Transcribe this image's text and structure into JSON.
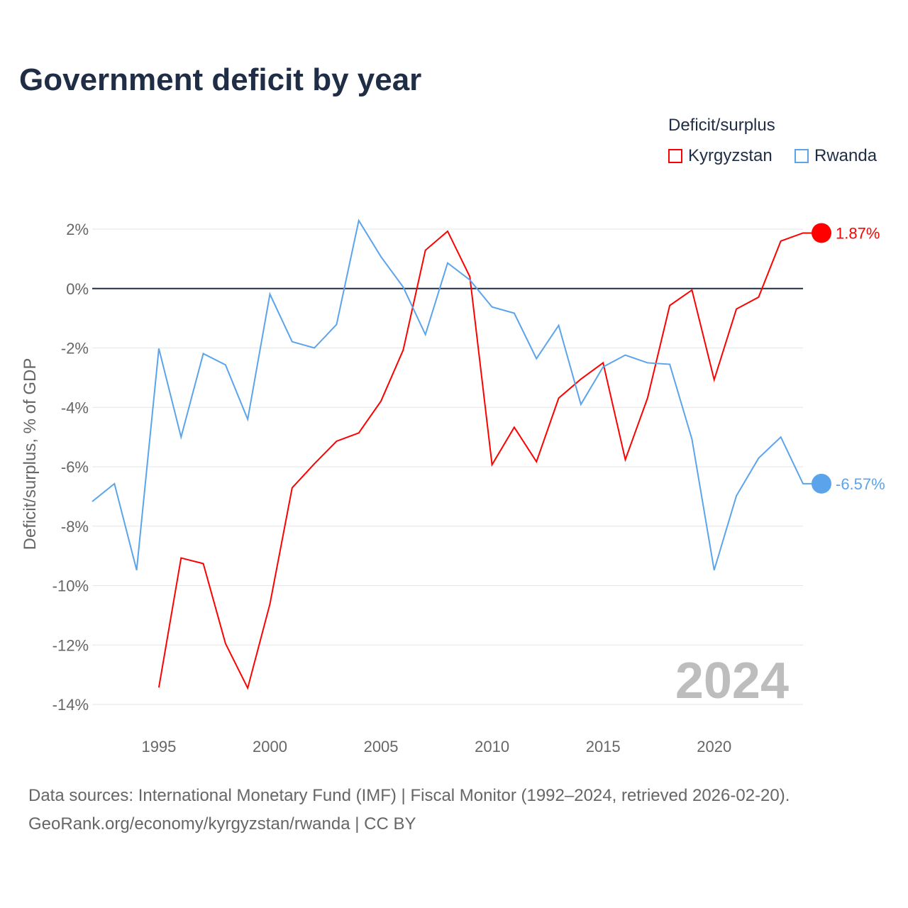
{
  "title": "Government deficit by year",
  "legend": {
    "title": "Deficit/surplus",
    "items": [
      "Kyrgyzstan",
      "Rwanda"
    ]
  },
  "watermark_year": "2024",
  "sources": {
    "line1": "Data sources: International Monetary Fund (IMF) | Fiscal Monitor (1992–2024, retrieved 2026-02-20).",
    "line2": "GeoRank.org/economy/kyrgyzstan/rwanda | CC BY"
  },
  "chart_data": {
    "type": "line",
    "title": "Government deficit by year",
    "xlabel": "",
    "ylabel": "Deficit/surplus, % of GDP",
    "xlim": [
      1992,
      2024
    ],
    "ylim": [
      -14,
      2
    ],
    "xticks": [
      1995,
      2000,
      2005,
      2010,
      2015,
      2020
    ],
    "yticks": [
      2,
      0,
      -2,
      -4,
      -6,
      -8,
      -10,
      -12,
      -14
    ],
    "ytick_labels": [
      "2%",
      "0%",
      "-2%",
      "-4%",
      "-6%",
      "-8%",
      "-10%",
      "-12%",
      "-14%"
    ],
    "grid": true,
    "legend_position": "top-right",
    "series": [
      {
        "name": "Kyrgyzstan",
        "color": "#ff0000",
        "end_label": "1.87%",
        "start_year": 1995,
        "values": [
          -13.43,
          -9.07,
          -9.26,
          -11.95,
          -13.45,
          -10.62,
          -6.71,
          -5.9,
          -5.14,
          -4.86,
          -3.79,
          -2.07,
          1.29,
          1.93,
          0.4,
          -5.93,
          -4.67,
          -5.83,
          -3.69,
          -3.05,
          -2.5,
          -5.76,
          -3.69,
          -0.57,
          -0.05,
          -3.07,
          -0.69,
          -0.29,
          1.6,
          1.87
        ]
      },
      {
        "name": "Rwanda",
        "color": "#5ba4ec",
        "end_label": "-6.57%",
        "start_year": 1992,
        "values": [
          -7.17,
          -6.57,
          -9.48,
          -2.02,
          -5.0,
          -2.19,
          -2.57,
          -4.4,
          -0.19,
          -1.79,
          -2.0,
          -1.21,
          2.29,
          1.07,
          0.05,
          -1.55,
          0.86,
          0.29,
          -0.62,
          -0.83,
          -2.36,
          -1.24,
          -3.9,
          -2.64,
          -2.24,
          -2.5,
          -2.55,
          -5.07,
          -9.48,
          -6.98,
          -5.71,
          -5.0,
          -6.57
        ]
      }
    ]
  }
}
